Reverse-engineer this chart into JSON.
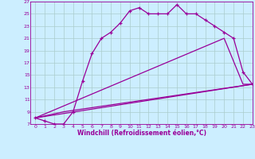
{
  "xlabel": "Windchill (Refroidissement éolien,°C)",
  "bg_color": "#cceeff",
  "line_color": "#990099",
  "grid_color": "#aacccc",
  "series1_x": [
    0,
    1,
    2,
    3,
    4,
    5,
    6,
    7,
    8,
    9,
    10,
    11,
    12,
    13,
    14,
    15,
    16,
    17,
    18,
    19,
    20,
    21,
    22,
    23
  ],
  "series1_y": [
    8,
    7.5,
    7,
    7,
    9,
    14,
    18.5,
    21,
    22,
    23.5,
    25.5,
    26,
    25,
    25,
    25,
    26.5,
    25,
    25,
    24,
    23,
    22,
    21,
    15.5,
    13.5
  ],
  "series2_x": [
    0,
    3,
    23
  ],
  "series2_y": [
    8,
    9,
    13.5
  ],
  "series3_x": [
    0,
    23
  ],
  "series3_y": [
    8,
    13.5
  ],
  "series4_x": [
    0,
    20,
    22,
    23
  ],
  "series4_y": [
    8,
    21,
    13.5,
    13.5
  ],
  "xlim": [
    -0.5,
    23
  ],
  "ylim": [
    7,
    27
  ],
  "xticks": [
    0,
    1,
    2,
    3,
    4,
    5,
    6,
    7,
    8,
    9,
    10,
    11,
    12,
    13,
    14,
    15,
    16,
    17,
    18,
    19,
    20,
    21,
    22,
    23
  ],
  "yticks": [
    7,
    9,
    11,
    13,
    15,
    17,
    19,
    21,
    23,
    25,
    27
  ],
  "xlabel_fontsize": 5.5,
  "tick_fontsize": 4.5
}
